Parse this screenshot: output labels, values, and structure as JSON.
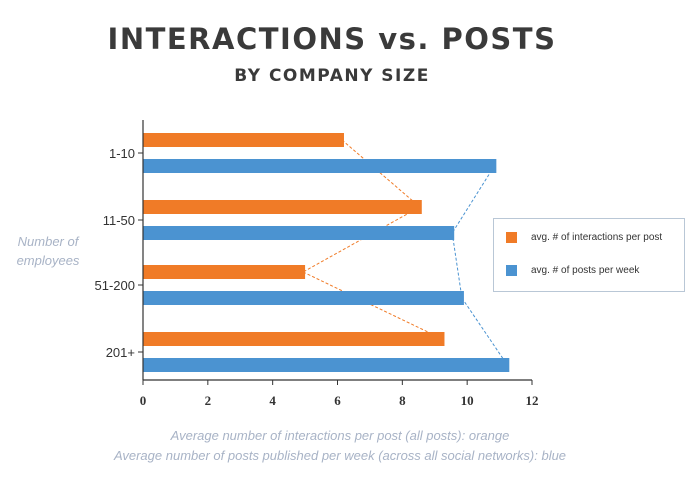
{
  "title": "INTERACTIONS vs. POSTS",
  "subtitle": "BY COMPANY SIZE",
  "y_axis_label": "Number of employees",
  "legend": [
    {
      "label": "avg. # of interactions per post",
      "color": "#f07b27"
    },
    {
      "label": "avg. # of posts per week",
      "color": "#4b93d1"
    }
  ],
  "footnotes": [
    "Average number of interactions per post (all posts): orange",
    "Average number of posts published per week (across all social networks): blue"
  ],
  "chart_data": {
    "type": "bar",
    "orientation": "horizontal",
    "categories": [
      "1-10",
      "11-50",
      "51-200",
      "201+"
    ],
    "series": [
      {
        "name": "avg. # of interactions per post",
        "color": "#f07b27",
        "values": [
          6.2,
          8.6,
          5.0,
          9.3
        ]
      },
      {
        "name": "avg. # of posts per week",
        "color": "#4b93d1",
        "values": [
          10.9,
          9.6,
          9.9,
          11.3
        ]
      }
    ],
    "xlim": [
      0,
      12
    ],
    "x_ticks": [
      0,
      2,
      4,
      6,
      8,
      10,
      12
    ],
    "connector_lines": true,
    "grid": false,
    "legend_position": "right"
  }
}
